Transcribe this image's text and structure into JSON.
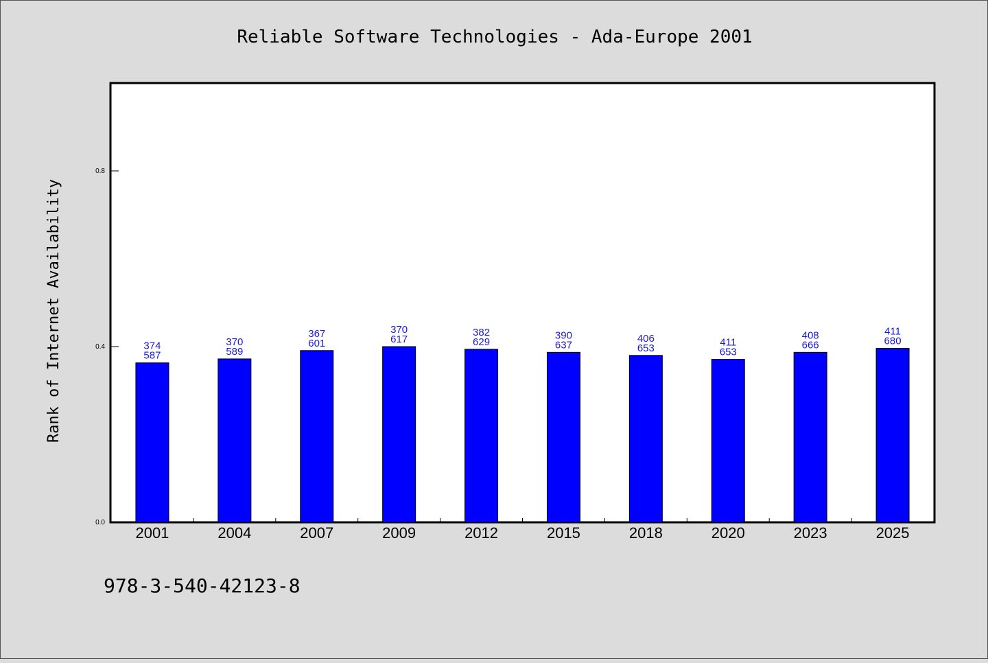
{
  "chart_data": {
    "type": "bar",
    "title": "Reliable Software Technologies - Ada-Europe 2001",
    "xlabel": "",
    "ylabel": "Rank of Internet Availability",
    "ylim": [
      0,
      1.0
    ],
    "yticks": [
      0.0,
      0.4,
      0.8
    ],
    "ytick_labels": [
      "0.0",
      "0.4",
      "0.8"
    ],
    "grid": false,
    "categories": [
      "2001",
      "2004",
      "2007",
      "2009",
      "2012",
      "2015",
      "2018",
      "2020",
      "2023",
      "2025"
    ],
    "values": [
      0.363,
      0.372,
      0.391,
      0.4,
      0.394,
      0.387,
      0.38,
      0.371,
      0.387,
      0.396
    ],
    "labels_top": [
      "374",
      "370",
      "367",
      "370",
      "382",
      "390",
      "406",
      "411",
      "408",
      "411"
    ],
    "labels_bottom": [
      "587",
      "589",
      "601",
      "617",
      "629",
      "637",
      "653",
      "653",
      "666",
      "680"
    ],
    "bar_color": "#0000ff",
    "label_color": "#1a1ad0",
    "background": "#dcdcdc",
    "plot_background": "#ffffff"
  },
  "footer_text": "978-3-540-42123-8"
}
